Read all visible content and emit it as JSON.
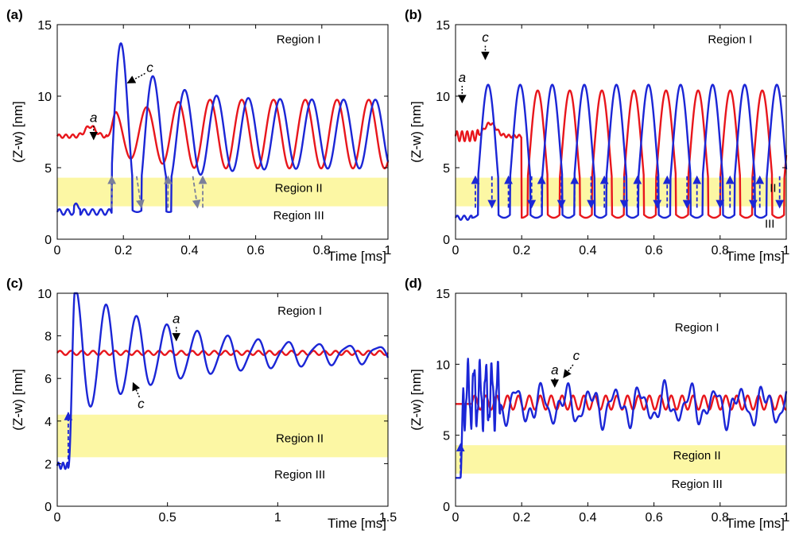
{
  "chart_data": [
    {
      "type": "line",
      "panel": "(a)",
      "ylabel": "(Z-w) [nm]",
      "xlabel": "Time [ms]",
      "xlim": [
        0,
        1
      ],
      "ylim": [
        0,
        15
      ],
      "xticks": [
        0,
        0.2,
        0.4,
        0.6,
        0.8,
        1
      ],
      "xtick_labels": [
        "0",
        "0.2",
        "0.4",
        "0.6",
        "0.8",
        "1"
      ],
      "yticks": [
        0,
        5,
        10,
        15
      ],
      "ytick_labels": [
        "0",
        "5",
        "10",
        "15"
      ],
      "band": [
        2.3,
        4.3
      ],
      "regions": [
        {
          "label": "Region I",
          "x": 0.73,
          "y": 13.7
        },
        {
          "label": "Region II",
          "x": 0.73,
          "y": 3.3
        },
        {
          "label": "Region III",
          "x": 0.73,
          "y": 1.4
        }
      ],
      "series": [
        {
          "name": "red",
          "color": "#e8161c",
          "mode": "a",
          "params": {
            "flat": 7.2,
            "hump_x": 0.1,
            "hump_amp": 0.7,
            "t0": 0.15,
            "period": 0.096,
            "mean": 7.35,
            "amp_start": 1.6,
            "amp_end": 2.4,
            "ramp": 0.3
          }
        },
        {
          "name": "blue",
          "color": "#1b26d6",
          "mode": "a",
          "params": {
            "low": 1.9,
            "t0": 0.165,
            "period": 0.096,
            "mean": 7.35,
            "amp_start": 7.5,
            "amp_end": 2.4,
            "decay": 0.11
          }
        }
      ],
      "annotations": [
        {
          "label": "a",
          "x": 0.11,
          "y": 8.2
        },
        {
          "label": "c",
          "x": 0.28,
          "y": 11.7
        }
      ],
      "transitions": [
        0.165,
        0.24,
        0.335,
        0.41,
        0.44
      ]
    },
    {
      "type": "line",
      "panel": "(b)",
      "ylabel": "(Z-w) [nm]",
      "xlabel": "Time [ms]",
      "xlim": [
        0,
        1
      ],
      "ylim": [
        0,
        15
      ],
      "xticks": [
        0,
        0.2,
        0.4,
        0.6,
        0.8,
        1
      ],
      "xtick_labels": [
        "0",
        "0.2",
        "0.4",
        "0.6",
        "0.8",
        "1"
      ],
      "yticks": [
        0,
        5,
        10,
        15
      ],
      "ytick_labels": [
        "0",
        "5",
        "10",
        "15"
      ],
      "band": [
        2.3,
        4.3
      ],
      "regions": [
        {
          "label": "Region I",
          "x": 0.83,
          "y": 13.7
        },
        {
          "label": "II",
          "x": 0.96,
          "y": 3.3
        },
        {
          "label": "III",
          "x": 0.95,
          "y": 0.8
        }
      ],
      "series": [
        {
          "name": "red",
          "color": "#e8161c",
          "mode": "b",
          "params": {
            "flat": 7.2,
            "hump_x": 0.105,
            "hump_amp": 0.9,
            "t0": 0.2,
            "period": 0.097,
            "amp": 5.0,
            "low": 1.5,
            "high": 10.4
          }
        },
        {
          "name": "blue",
          "color": "#1b26d6",
          "mode": "b",
          "params": {
            "low": 1.5,
            "t0": 0.05,
            "period": 0.097,
            "high": 10.8
          }
        }
      ],
      "annotations": [
        {
          "label": "a",
          "x": 0.02,
          "y": 11.0
        },
        {
          "label": "c",
          "x": 0.09,
          "y": 13.8
        }
      ],
      "transitions": [
        0.06,
        0.11,
        0.16,
        0.23,
        0.26,
        0.32,
        0.36,
        0.41,
        0.45,
        0.51,
        0.55,
        0.61,
        0.64,
        0.7,
        0.73,
        0.8,
        0.83,
        0.9,
        0.92,
        0.98
      ]
    },
    {
      "type": "line",
      "panel": "(c)",
      "ylabel": "(Z-w) [nm]",
      "xlabel": "Time [ms]",
      "xlim": [
        0,
        1.5
      ],
      "ylim": [
        0,
        10
      ],
      "xticks": [
        0,
        0.5,
        1,
        1.5
      ],
      "xtick_labels": [
        "0",
        "0.5",
        "1",
        "1.5"
      ],
      "yticks": [
        0,
        2,
        4,
        6,
        8,
        10
      ],
      "ytick_labels": [
        "0",
        "2",
        "4",
        "6",
        "8",
        "10"
      ],
      "band": [
        2.3,
        4.3
      ],
      "regions": [
        {
          "label": "Region I",
          "x": 1.1,
          "y": 9.0
        },
        {
          "label": "Region II",
          "x": 1.1,
          "y": 3.0
        },
        {
          "label": "Region III",
          "x": 1.1,
          "y": 1.3
        }
      ],
      "series": [
        {
          "name": "red",
          "color": "#e8161c",
          "mode": "c_red",
          "params": {
            "mean": 7.2,
            "amp": 0.1,
            "period": 0.05
          }
        },
        {
          "name": "blue",
          "color": "#1b26d6",
          "mode": "c_blue",
          "params": {
            "low": 1.9,
            "t0": 0.05,
            "period": 0.137,
            "mean": 7.15,
            "amp_start": 2.9,
            "decay": 0.45
          }
        }
      ],
      "annotations": [
        {
          "label": "a",
          "x": 0.54,
          "y": 8.6
        },
        {
          "label": "c",
          "x": 0.38,
          "y": 4.6
        }
      ],
      "transitions": [
        0.05
      ]
    },
    {
      "type": "line",
      "panel": "(d)",
      "ylabel": "(Z-w) [nm]",
      "xlabel": "Time [ms]",
      "xlim": [
        0,
        1
      ],
      "ylim": [
        0,
        15
      ],
      "xticks": [
        0,
        0.2,
        0.4,
        0.6,
        0.8,
        1
      ],
      "xtick_labels": [
        "0",
        "0.2",
        "0.4",
        "0.6",
        "0.8",
        "1"
      ],
      "yticks": [
        0,
        5,
        10,
        15
      ],
      "ytick_labels": [
        "0",
        "5",
        "10",
        "15"
      ],
      "band": [
        2.3,
        4.3
      ],
      "regions": [
        {
          "label": "Region I",
          "x": 0.73,
          "y": 12.3
        },
        {
          "label": "Region II",
          "x": 0.73,
          "y": 3.3
        },
        {
          "label": "Region III",
          "x": 0.73,
          "y": 1.3
        }
      ],
      "series": [
        {
          "name": "red",
          "color": "#e8161c",
          "mode": "d_red",
          "params": {
            "flat": 7.2,
            "t0": 0.05,
            "mean": 7.3,
            "amp": 0.5,
            "period": 0.033
          }
        },
        {
          "name": "blue",
          "color": "#1b26d6",
          "mode": "d_blue",
          "params": {
            "low": 2.0,
            "t0": 0.015,
            "mean": 7.1,
            "period": 0.075
          }
        }
      ],
      "annotations": [
        {
          "label": "a",
          "x": 0.3,
          "y": 9.3
        },
        {
          "label": "c",
          "x": 0.365,
          "y": 10.3
        }
      ],
      "transitions": [
        0.015
      ]
    }
  ]
}
